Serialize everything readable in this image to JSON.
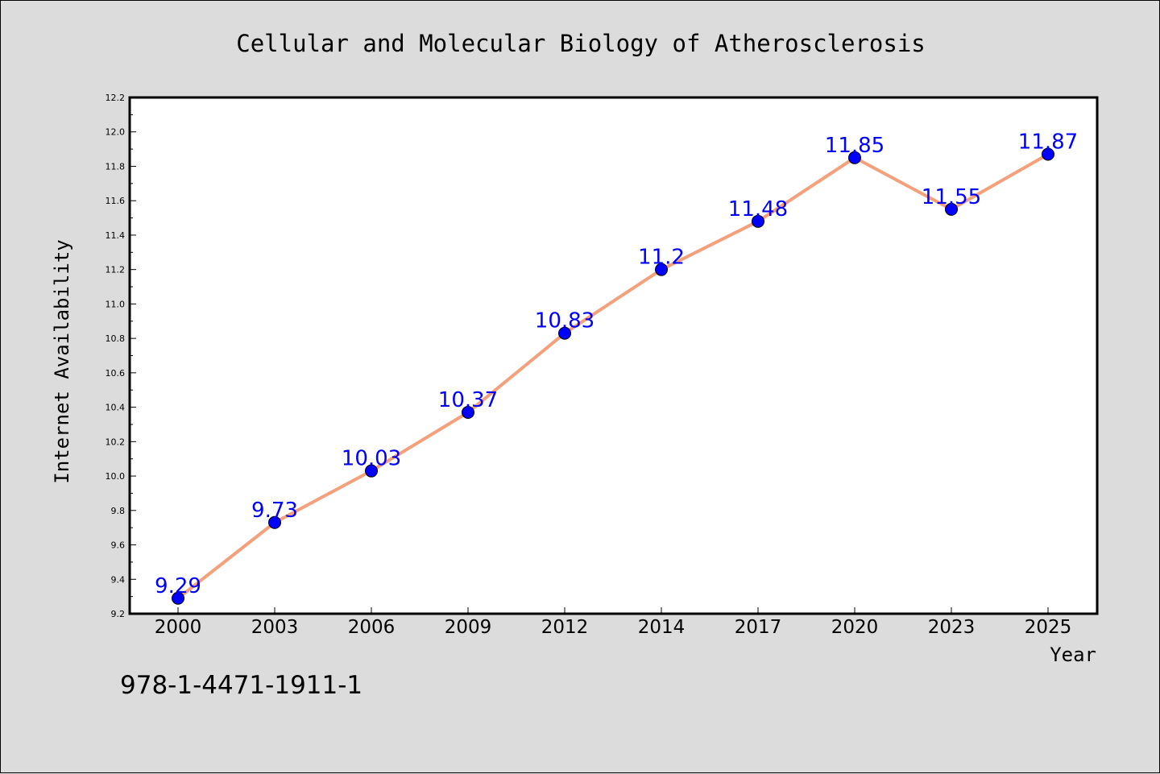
{
  "chart_data": {
    "type": "line",
    "title": "Cellular and Molecular Biology of Atherosclerosis",
    "xlabel": "Year",
    "ylabel": "Internet Availability",
    "categories": [
      "2000",
      "2003",
      "2006",
      "2009",
      "2012",
      "2014",
      "2017",
      "2020",
      "2023",
      "2025"
    ],
    "values": [
      9.29,
      9.73,
      10.03,
      10.37,
      10.83,
      11.2,
      11.48,
      11.85,
      11.55,
      11.87
    ],
    "value_labels": [
      "9.29",
      "9.73",
      "10.03",
      "10.37",
      "10.83",
      "11.2",
      "11.48",
      "11.85",
      "11.55",
      "11.87"
    ],
    "ylim": [
      9.2,
      12.2
    ],
    "yticks": [
      "9.2",
      "9.4",
      "9.6",
      "9.8",
      "10.0",
      "10.2",
      "10.4",
      "10.6",
      "10.8",
      "11.0",
      "11.2",
      "11.4",
      "11.6",
      "11.8",
      "12.0",
      "12.2"
    ],
    "grid": false,
    "line_color": "#f4a07a",
    "marker_color": "#0000ff",
    "label_color": "#0000ff"
  },
  "footer": {
    "code": "978-1-4471-1911-1"
  }
}
